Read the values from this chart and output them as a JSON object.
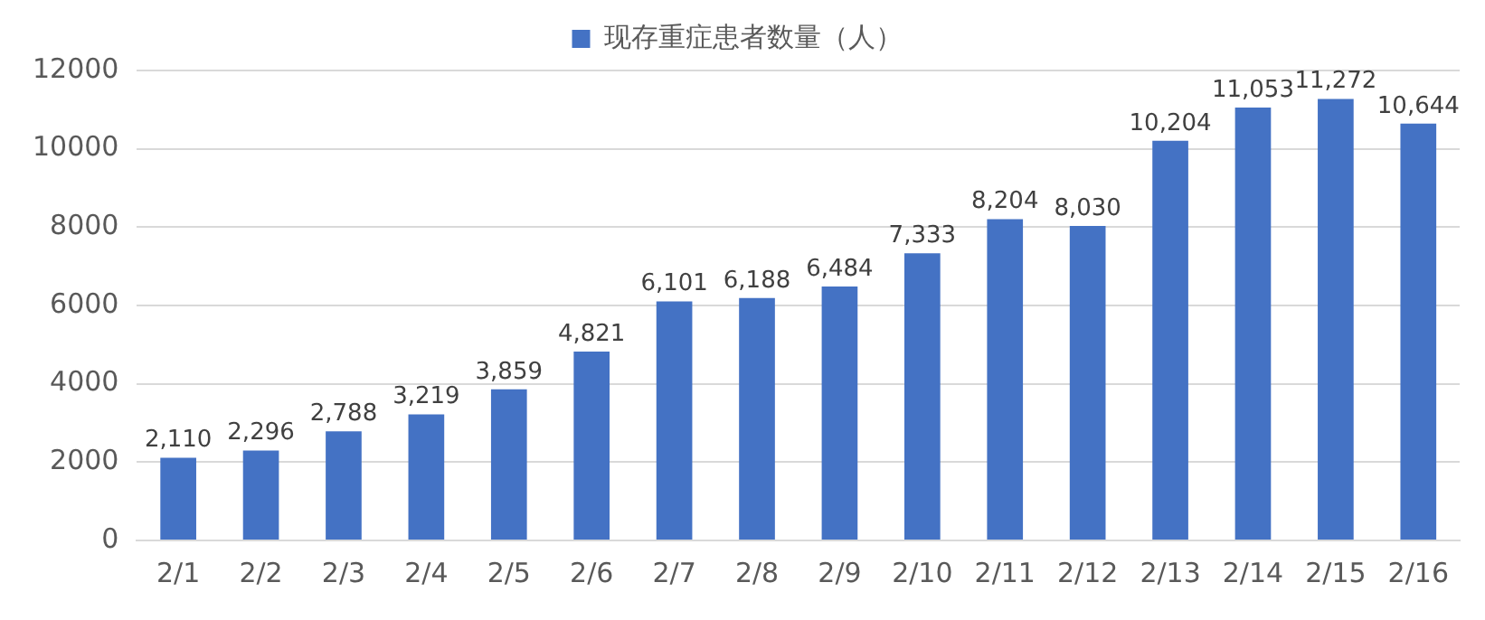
{
  "chart_data": {
    "type": "bar",
    "categories": [
      "2/1",
      "2/2",
      "2/3",
      "2/4",
      "2/5",
      "2/6",
      "2/7",
      "2/8",
      "2/9",
      "2/10",
      "2/11",
      "2/12",
      "2/13",
      "2/14",
      "2/15",
      "2/16"
    ],
    "series": [
      {
        "name": "现存重症患者数量（人）",
        "color": "#4472c4",
        "values": [
          2110,
          2296,
          2788,
          3219,
          3859,
          4821,
          6101,
          6188,
          6484,
          7333,
          8204,
          8030,
          10204,
          11053,
          11272,
          10644
        ],
        "value_labels": [
          "2,110",
          "2,296",
          "2,788",
          "3,219",
          "3,859",
          "4,821",
          "6,101",
          "6,188",
          "6,484",
          "7,333",
          "8,204",
          "8,030",
          "10,204",
          "11,053",
          "11,272",
          "10,644"
        ]
      }
    ],
    "ylim": [
      0,
      12000
    ],
    "yticks": [
      0,
      2000,
      4000,
      6000,
      8000,
      10000,
      12000
    ],
    "grid": "y",
    "legend": "top"
  }
}
